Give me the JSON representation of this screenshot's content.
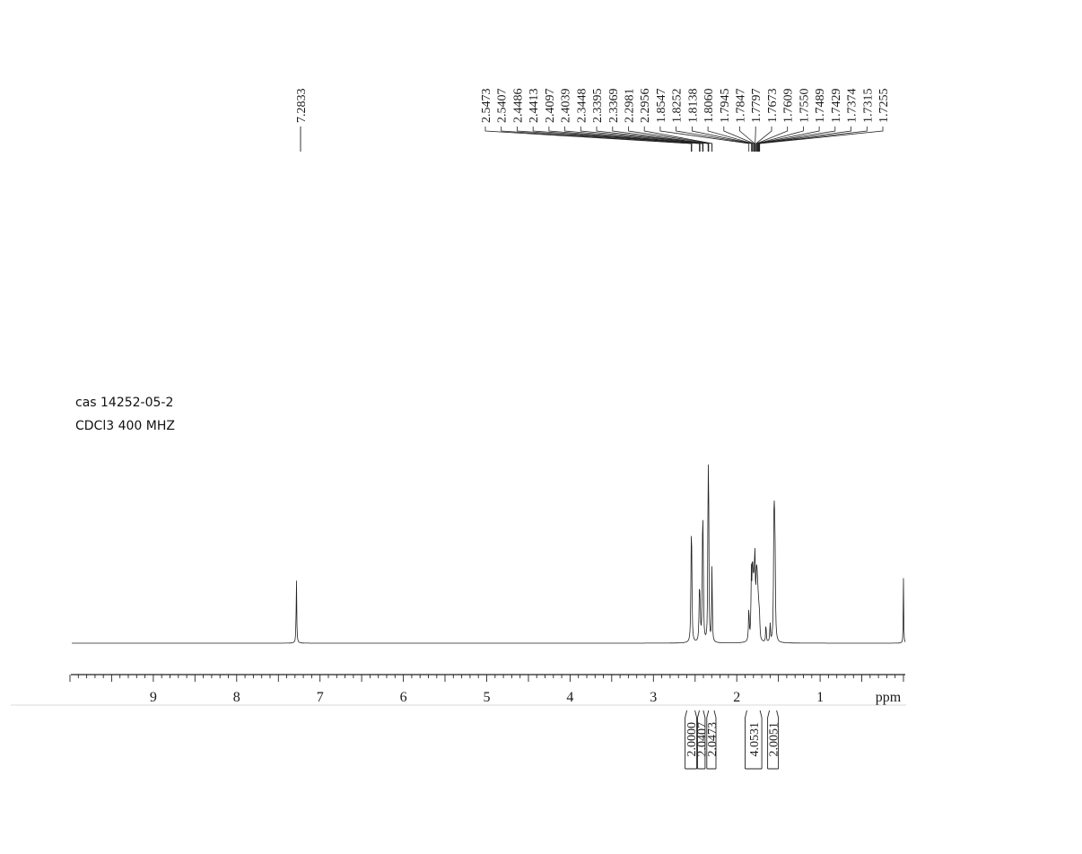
{
  "chart_data": {
    "type": "line",
    "annotations": [
      "cas 14252-05-2",
      "CDCl3 400 MHZ"
    ],
    "x_axis": {
      "unit_label": "ppm",
      "range": [
        10.0,
        0.0
      ],
      "reversed": true,
      "ticks": [
        9,
        8,
        7,
        6,
        5,
        4,
        3,
        2,
        1
      ],
      "minor_step": 0.1,
      "major_step": 0.5
    },
    "peak_labels": {
      "single": [
        "7.2833"
      ],
      "group": [
        "2.5473",
        "2.5407",
        "2.4486",
        "2.4413",
        "2.4097",
        "2.4039",
        "2.3448",
        "2.3395",
        "2.3369",
        "2.2981",
        "2.2956",
        "1.8547",
        "1.8252",
        "1.8138",
        "1.8060",
        "1.7945",
        "1.7847",
        "1.7797",
        "1.7673",
        "1.7609",
        "1.7550",
        "1.7489",
        "1.7429",
        "1.7374",
        "1.7315",
        "1.7255"
      ]
    },
    "peaks": [
      {
        "ppm": 7.283,
        "height": 1.0,
        "width": 0.004
      },
      {
        "ppm": 2.547,
        "height": 1.12,
        "width": 0.005
      },
      {
        "ppm": 2.541,
        "height": 1.05,
        "width": 0.005
      },
      {
        "ppm": 2.449,
        "height": 0.6,
        "width": 0.005
      },
      {
        "ppm": 2.441,
        "height": 0.58,
        "width": 0.005
      },
      {
        "ppm": 2.41,
        "height": 1.28,
        "width": 0.005
      },
      {
        "ppm": 2.404,
        "height": 1.2,
        "width": 0.005
      },
      {
        "ppm": 2.345,
        "height": 1.5,
        "width": 0.004
      },
      {
        "ppm": 2.34,
        "height": 1.4,
        "width": 0.004
      },
      {
        "ppm": 2.337,
        "height": 1.25,
        "width": 0.004
      },
      {
        "ppm": 2.298,
        "height": 0.65,
        "width": 0.004
      },
      {
        "ppm": 2.296,
        "height": 0.6,
        "width": 0.004
      },
      {
        "ppm": 1.855,
        "height": 0.5,
        "width": 0.005
      },
      {
        "ppm": 1.825,
        "height": 0.95,
        "width": 0.005
      },
      {
        "ppm": 1.814,
        "height": 0.72,
        "width": 0.005
      },
      {
        "ppm": 1.806,
        "height": 0.8,
        "width": 0.005
      },
      {
        "ppm": 1.795,
        "height": 0.7,
        "width": 0.005
      },
      {
        "ppm": 1.785,
        "height": 0.76,
        "width": 0.005
      },
      {
        "ppm": 1.78,
        "height": 0.7,
        "width": 0.005
      },
      {
        "ppm": 1.767,
        "height": 0.58,
        "width": 0.005
      },
      {
        "ppm": 1.761,
        "height": 0.55,
        "width": 0.005
      },
      {
        "ppm": 1.755,
        "height": 0.48,
        "width": 0.005
      },
      {
        "ppm": 1.749,
        "height": 0.38,
        "width": 0.005
      },
      {
        "ppm": 1.743,
        "height": 0.3,
        "width": 0.005
      },
      {
        "ppm": 1.737,
        "height": 0.25,
        "width": 0.005
      },
      {
        "ppm": 1.731,
        "height": 0.22,
        "width": 0.005
      },
      {
        "ppm": 1.726,
        "height": 0.2,
        "width": 0.005
      },
      {
        "ppm": 1.65,
        "height": 0.3,
        "width": 0.004
      },
      {
        "ppm": 1.6,
        "height": 0.3,
        "width": 0.004
      },
      {
        "ppm": 1.555,
        "height": 1.42,
        "width": 0.005
      },
      {
        "ppm": 1.548,
        "height": 1.35,
        "width": 0.005
      },
      {
        "ppm": 1.541,
        "height": 1.15,
        "width": 0.005
      },
      {
        "ppm": 0.0,
        "height": 0.98,
        "width": 0.003
      }
    ],
    "integrals": [
      {
        "value": "2.0000",
        "from": 2.62,
        "to": 2.48
      },
      {
        "value": "2.0407",
        "from": 2.47,
        "to": 2.38
      },
      {
        "value": "2.0473",
        "from": 2.36,
        "to": 2.25
      },
      {
        "value": "4.0531",
        "from": 1.9,
        "to": 1.7
      },
      {
        "value": "2.0051",
        "from": 1.63,
        "to": 1.5
      }
    ]
  }
}
